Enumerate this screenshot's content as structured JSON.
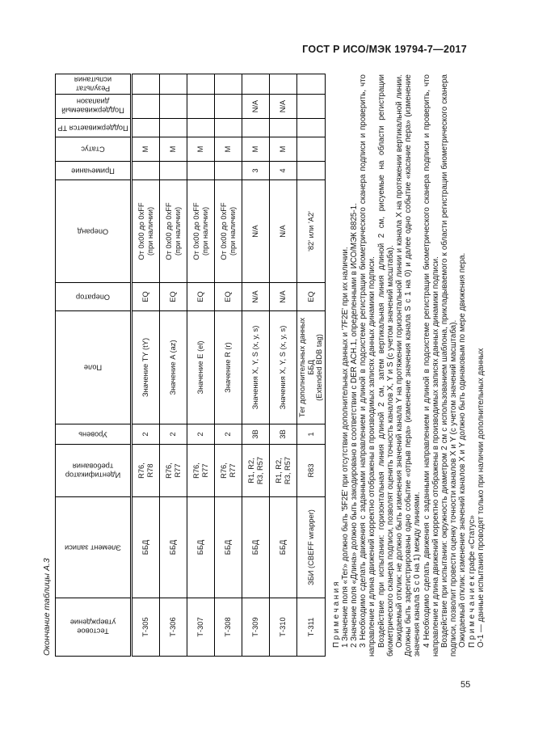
{
  "page": {
    "header_title": "ГОСТ Р ИСО/МЭК 19794-7—2017",
    "page_number": "55"
  },
  "table": {
    "caption": "Окончание таблицы А.3",
    "columns": [
      {
        "label": "Тестовое утверждение"
      },
      {
        "label": "Элемент записи"
      },
      {
        "label": "Идентификатор требования"
      },
      {
        "label": "Уровень"
      },
      {
        "label": "Поле"
      },
      {
        "label": "Оператор"
      },
      {
        "label": "Операнд"
      },
      {
        "label": "Примечание"
      },
      {
        "label": "Статус"
      },
      {
        "label": "Поддерживается ТР"
      },
      {
        "label": "Поддерживаемый диапазон"
      },
      {
        "label": "Результат испытания"
      }
    ],
    "rows": [
      [
        "Т-305",
        "ББД",
        "R76,\nR78",
        "2",
        "Значение TY (tY)",
        "EQ",
        "От 0x00 до 0xFF\n(при наличии)",
        "",
        "М",
        "",
        "",
        ""
      ],
      [
        "Т-306",
        "ББД",
        "R76,\nR77",
        "2",
        "Значение A (az)",
        "EQ",
        "От 0x00 до 0xFF\n(при наличии)",
        "",
        "М",
        "",
        "",
        ""
      ],
      [
        "Т-307",
        "ББД",
        "R76,\nR77",
        "2",
        "Значение E (el)",
        "EQ",
        "От 0x00 до 0xFF\n(при наличии)",
        "",
        "М",
        "",
        "",
        ""
      ],
      [
        "Т-308",
        "ББД",
        "R76,\nR77",
        "2",
        "Значение R (r)",
        "EQ",
        "От 0x00 до 0xFF\n(при наличии)",
        "",
        "М",
        "",
        "",
        ""
      ],
      [
        "Т-309",
        "ББД",
        "R1, R2,\nR3, R57",
        "3B",
        "Значения X, Y, S (x, y, s)",
        "N/A",
        "N/A",
        "3",
        "М",
        "",
        "N/A",
        ""
      ],
      [
        "Т-310",
        "ББД",
        "R1, R2,\nR3, R57",
        "3B",
        "Значения X, Y, S (x, y, s)",
        "N/A",
        "N/A",
        "4",
        "М",
        "",
        "N/A",
        ""
      ],
      [
        "Т-311",
        "ЗБИ (CBEFF wrapper)",
        "R83",
        "1",
        "Тег дополнительных данных ББД\n(Extended BDB tag)",
        "EQ",
        "'82' или 'A2'",
        "",
        "",
        "",
        "",
        ""
      ]
    ]
  },
  "footnotes": {
    "heading": "П р и м е ч а н и я",
    "paragraphs": [
      "1 Значение поля «Тег» должно быть '5F2E' при отсутствии дополнительных данных и '7F2E' при их наличии.",
      "2 Значение поля «Длина» должно быть закодировано в соответствии с DER АСН.1, определенными в ИСО/МЭК 8825-1.",
      "3 Необходимо сделать движения с заданными направлением и длиной в подсистеме регистрации биометрического сканера подписи и проверить, что направление и длина движений корректно отображены в производимых записях данных динамики подписи.",
      "Воздействие при испытании: горизонтальная линия длиной 2 см, затем вертикальная линия длиной 2 см, рисуемые на области регистрации биометрического сканера подписи, позволят оценить точность каналов X, Y и S (с учетом значений масштаба).",
      "Ожидаемый отклик: не должно быть изменения значений канала Y на протяжении горизонтальной линии и канала X на протяжении вертикальной линии. Должны быть зарегистрированы одно событие «отрыв пера» (изменение значения канала S с 1 на 0) и далее одно событие «касание пера» (изменение значения канала S с 0 на 1) между линиями.",
      "4 Необходимо сделать движения с заданными направлением и длиной в подсистеме регистрации биометрического сканера подписи и проверить, что направление и длина движений корректно отображены в производимых записях данных динамики подписи.",
      "Воздействие при испытании: окружность диаметром 2 см с использованием шаблона, прикладываемого к области регистрации биометрического сканера подписи, позволит провести оценку точности каналов X и Y (с учетом значений масштаба).",
      "Ожидаемый отклик: изменение значений каналов X и Y должно быть одинаковым по мере движения пера."
    ],
    "status_note_heading": "П р и м е ч а н и е  к графе «Статус»",
    "status_note": "О-1 — данные испытания проводят только при наличии дополнительных данных"
  }
}
